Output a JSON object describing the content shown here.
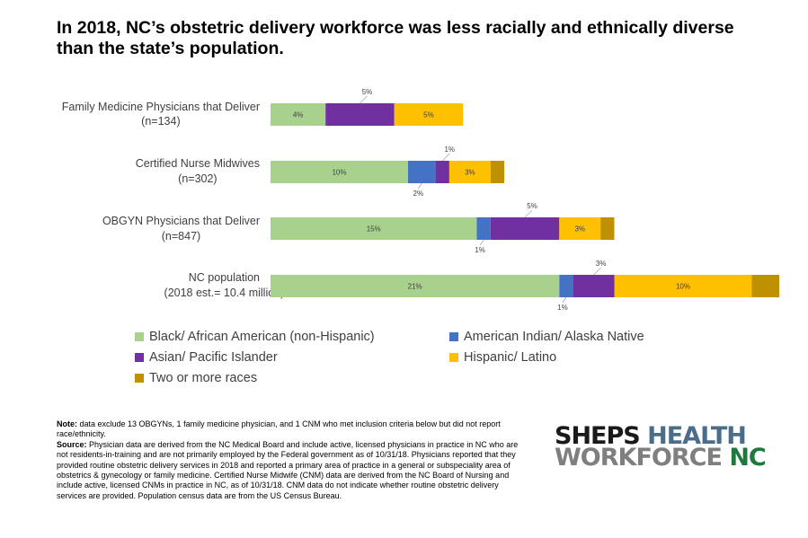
{
  "title": "In 2018, NC’s obstetric delivery workforce was less racially and ethnically diverse than the state’s population.",
  "chart_data": {
    "type": "bar",
    "orientation": "horizontal",
    "stacked": true,
    "categories": [
      [
        "Family Medicine Physicians that Deliver",
        "(n=134)"
      ],
      [
        "Certified Nurse Midwives",
        "(n=302)"
      ],
      [
        "OBGYN Physicians that Deliver",
        "(n=847)"
      ],
      [
        "NC population",
        "(2018 est.= 10.4 million)"
      ]
    ],
    "series": [
      {
        "name": "Black/ African American (non-Hispanic)",
        "color": "#a9d18e",
        "values": [
          4,
          10,
          15,
          21
        ],
        "labels": [
          "4%",
          "10%",
          "15%",
          "21%"
        ]
      },
      {
        "name": "American Indian/ Alaska Native",
        "color": "#4472c4",
        "values": [
          0,
          2,
          1,
          1
        ],
        "labels": [
          "",
          "2%",
          "1%",
          "1%"
        ]
      },
      {
        "name": "Asian/ Pacific Islander",
        "color": "#7030a0",
        "values": [
          5,
          1,
          5,
          3
        ],
        "labels": [
          "5%",
          "1%",
          "5%",
          "3%"
        ]
      },
      {
        "name": "Hispanic/ Latino",
        "color": "#ffc000",
        "values": [
          5,
          3,
          3,
          10
        ],
        "labels": [
          "5%",
          "3%",
          "3%",
          "10%"
        ]
      },
      {
        "name": "Two or more races",
        "color": "#bf9000",
        "values": [
          0,
          1,
          1,
          2
        ],
        "labels": [
          "",
          "",
          "",
          ""
        ]
      }
    ],
    "grid": false,
    "legend_position": "bottom"
  },
  "notes": {
    "note_heading": "Note:",
    "note_text": " data exclude 13 OBGYNs, 1 family medicine physician, and 1 CNM who met inclusion criteria below but did not report race/ethnicity.",
    "source_heading": "Source:",
    "source_text": " Physician data are derived from the NC Medical Board and include active, licensed physicians in practice in NC who are not residents-in-training and are not primarily employed by the Federal government as of 10/31/18.  Physicians reported that they provided routine obstetric delivery services in 2018 and reported a primary area of practice in a general or subspeciality area of obstetrics & gynecology or family medicine.  Certified Nurse Midwife (CNM) data are derived from the NC Board of Nursing and include active, licensed CNMs in practice in NC, as of 10/31/18.  CNM data do not indicate whether routine obstetric delivery services are provided.  Population census data are from the US Census Bureau."
  },
  "logo": {
    "word1": "SHEPS",
    "word2": "HEALTH",
    "word3": "WORKFORCE",
    "word4": "NC",
    "colors": {
      "dark": "#1a1a1a",
      "blue": "#4a6d8c",
      "gray": "#7f7f7f",
      "green": "#1e7a3c"
    }
  }
}
